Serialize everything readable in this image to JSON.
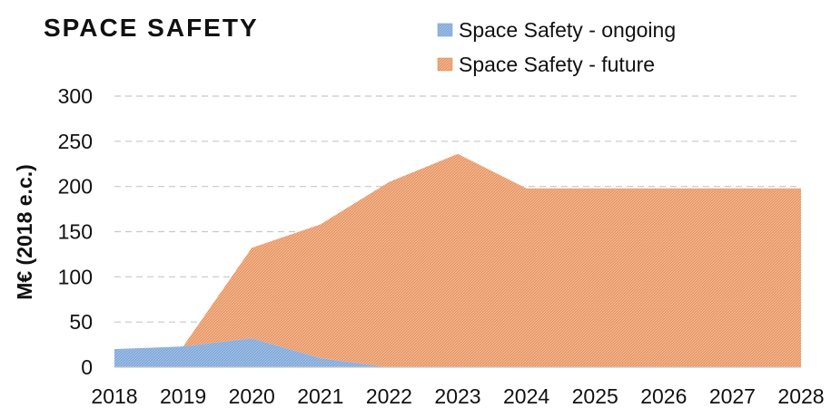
{
  "chart_data": {
    "type": "area",
    "title": "SPACE SAFETY",
    "xlabel": "",
    "ylabel": "M€ (2018 e.c.)",
    "x": [
      "2018",
      "2019",
      "2020",
      "2021",
      "2022",
      "2023",
      "2024",
      "2025",
      "2026",
      "2027",
      "2028"
    ],
    "ylim": [
      0,
      300
    ],
    "yticks": [
      "0",
      "50",
      "100",
      "150",
      "200",
      "250",
      "300"
    ],
    "grid": true,
    "legend_position": "top-right",
    "stacked": true,
    "series": [
      {
        "name": "Space Safety - ongoing",
        "color": "#8fb4e0",
        "values": [
          20,
          23,
          32,
          10,
          0,
          0,
          0,
          0,
          0,
          0,
          0
        ]
      },
      {
        "name": "Space Safety - future",
        "color": "#f0a87c",
        "values": [
          0,
          0,
          100,
          148,
          205,
          236,
          198,
          198,
          198,
          198,
          198
        ]
      }
    ]
  }
}
